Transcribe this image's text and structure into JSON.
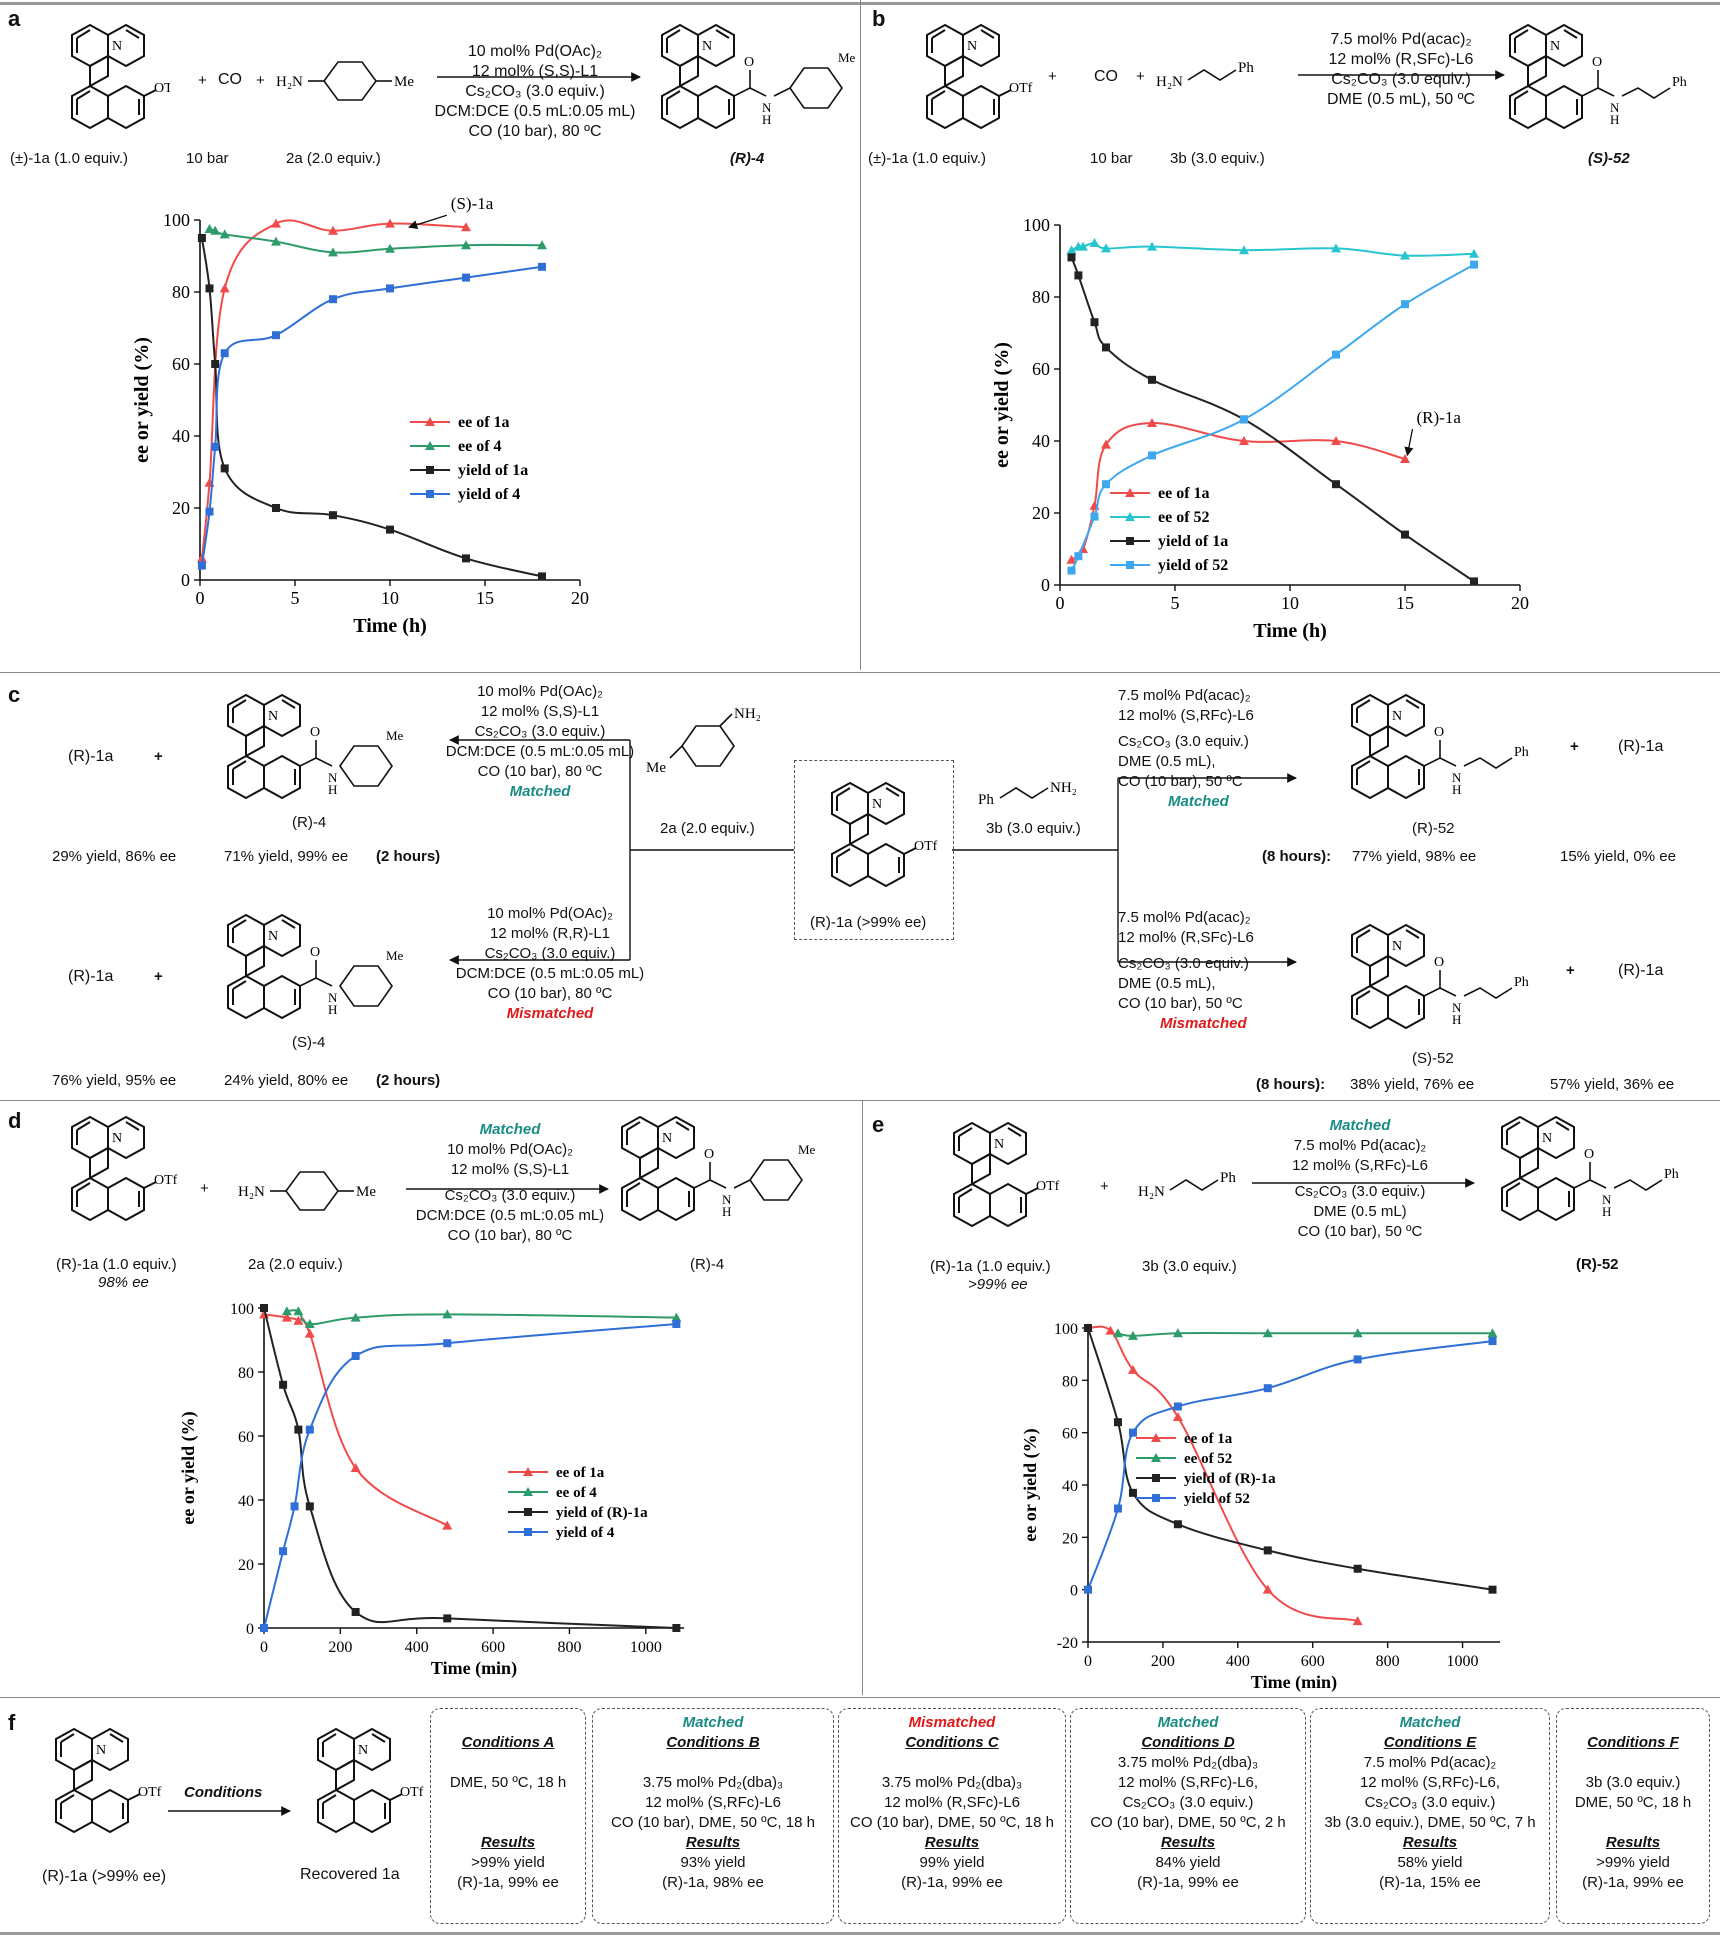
{
  "panels": {
    "a": {
      "letter": "a",
      "reactant": "(±)-1a (1.0  equiv.)",
      "co": "CO",
      "co_pressure": "10 bar",
      "amine": "2a (2.0  equiv.)",
      "conditions": [
        "10 mol% Pd(OAc)₂",
        "12 mol% (S,S)-L1",
        "Cs₂CO₃ (3.0 equiv.)",
        "DCM:DCE (0.5 mL:0.05 mL)",
        "CO (10 bar), 80 ºC"
      ],
      "product": "(R)-4",
      "annotation": "(S)-1a"
    },
    "b": {
      "letter": "b",
      "reactant": "(±)-1a (1.0  equiv.)",
      "co": "CO",
      "co_pressure": "10 bar",
      "amine": "3b (3.0  equiv.)",
      "conditions": [
        "7.5 mol% Pd(acac)₂",
        "12 mol% (R,SFc)-L6",
        "Cs₂CO₃ (3.0 equiv.)",
        "DME (0.5 mL), 50 ºC"
      ],
      "product": "(S)-52",
      "annotation": "(R)-1a"
    },
    "c": {
      "letter": "c",
      "center_label": "(R)-1a (>99% ee)",
      "amine_left": "2a (2.0  equiv.)",
      "amine_right": "3b (3.0  equiv.)",
      "top_left": {
        "conditions": [
          "10 mol% Pd(OAc)₂",
          "12 mol% (S,S)-L1",
          "Cs₂CO₃ (3.0 equiv.)",
          "DCM:DCE (0.5 mL:0.05 mL)",
          "CO (10 bar), 80 ºC"
        ],
        "tag": "Matched",
        "product": "(R)-4",
        "recovered": "(R)-1a",
        "yield_sm": "29% yield, 86% ee",
        "yield_prod": "71% yield, 99% ee",
        "time": "(2 hours)"
      },
      "bottom_left": {
        "conditions": [
          "10 mol% Pd(OAc)₂",
          "12 mol% (R,R)-L1",
          "Cs₂CO₃ (3.0 equiv.)",
          "DCM:DCE (0.5 mL:0.05 mL)",
          "CO (10 bar), 80 ºC"
        ],
        "tag": "Mismatched",
        "product": "(S)-4",
        "recovered": "(R)-1a",
        "yield_sm": "76% yield, 95% ee",
        "yield_prod": "24% yield, 80% ee",
        "time": "(2 hours)"
      },
      "top_right": {
        "conditions": [
          "7.5 mol% Pd(acac)₂",
          "12 mol% (S,RFc)-L6",
          "Cs₂CO₃ (3.0 equiv.)",
          "DME (0.5 mL),",
          "CO (10 bar), 50 ºC"
        ],
        "tag": "Matched",
        "product": "(R)-52",
        "recovered": "(R)-1a",
        "time": "(8 hours):",
        "yield_prod": "77% yield, 98% ee",
        "yield_sm": "15% yield, 0% ee"
      },
      "bottom_right": {
        "conditions": [
          "7.5 mol% Pd(acac)₂",
          "12 mol% (R,SFc)-L6",
          "Cs₂CO₃ (3.0 equiv.)",
          "DME (0.5 mL),",
          "CO (10 bar), 50 ºC"
        ],
        "tag": "Mismatched",
        "product": "(S)-52",
        "recovered": "(R)-1a",
        "time": "(8 hours):",
        "yield_prod": "38% yield, 76% ee",
        "yield_sm": "57% yield, 36% ee"
      }
    },
    "d": {
      "letter": "d",
      "reactant": "(R)-1a (1.0  equiv.)",
      "reactant_ee": "98% ee",
      "amine": "2a (2.0  equiv.)",
      "tag": "Matched",
      "conditions": [
        "10 mol% Pd(OAc)₂",
        "12 mol% (S,S)-L1",
        "Cs₂CO₃ (3.0 equiv.)",
        "DCM:DCE (0.5 mL:0.05 mL)",
        "CO (10 bar), 80 ºC"
      ],
      "product": "(R)-4"
    },
    "e": {
      "letter": "e",
      "reactant": "(R)-1a (1.0  equiv.)",
      "reactant_ee": ">99% ee",
      "amine": "3b (3.0  equiv.)",
      "tag": "Matched",
      "conditions": [
        "7.5 mol% Pd(acac)₂",
        "12 mol% (S,RFc)-L6",
        "Cs₂CO₃ (3.0 equiv.)",
        "DME (0.5 mL)",
        "CO (10 bar), 50 ºC"
      ],
      "product": "(R)-52"
    },
    "f": {
      "letter": "f",
      "reactant": "(R)-1a (>99% ee)",
      "arrow_label": "Conditions",
      "product": "Recovered 1a",
      "boxes": [
        {
          "tag": "",
          "title": "Conditions A",
          "lines": [
            "",
            "DME, 50 ºC, 18 h",
            "",
            ""
          ],
          "results_title": "Results",
          "results": [
            ">99% yield",
            "(R)-1a, 99% ee"
          ]
        },
        {
          "tag": "Matched",
          "tag_color": "teal",
          "title": "Conditions B",
          "lines": [
            "",
            "3.75 mol% Pd₂(dba)₃",
            "12 mol% (S,RFc)-L6",
            "CO (10 bar), DME, 50 ºC, 18 h"
          ],
          "results_title": "Results",
          "results": [
            "93% yield",
            "(R)-1a, 98% ee"
          ]
        },
        {
          "tag": "Mismatched",
          "tag_color": "red",
          "title": "Conditions C",
          "lines": [
            "",
            "3.75 mol% Pd₂(dba)₃",
            "12 mol% (R,SFc)-L6",
            "CO (10 bar), DME, 50 ºC, 18 h"
          ],
          "results_title": "Results",
          "results": [
            "99% yield",
            "(R)-1a, 99% ee"
          ]
        },
        {
          "tag": "Matched",
          "tag_color": "teal",
          "title": "Conditions D",
          "lines": [
            "3.75 mol% Pd₂(dba)₃",
            "12 mol% (S,RFc)-L6,",
            "Cs₂CO₃ (3.0 equiv.)",
            "CO (10 bar), DME, 50 ºC, 2 h"
          ],
          "results_title": "Results",
          "results": [
            "84% yield",
            "(R)-1a, 99% ee"
          ]
        },
        {
          "tag": "Matched",
          "tag_color": "teal",
          "title": "Conditions E",
          "lines": [
            "7.5 mol% Pd(acac)₂",
            "12 mol% (S,RFc)-L6,",
            "Cs₂CO₃ (3.0 equiv.)",
            "3b (3.0 equiv.), DME, 50 ºC, 7 h"
          ],
          "results_title": "Results",
          "results": [
            "58% yield",
            "(R)-1a, 15% ee"
          ]
        },
        {
          "tag": "",
          "title": "Conditions F",
          "lines": [
            "",
            "3b (3.0 equiv.)",
            "DME, 50 ºC, 18 h",
            ""
          ],
          "results_title": "Results",
          "results": [
            ">99% yield",
            "(R)-1a, 99% ee"
          ]
        }
      ]
    }
  },
  "chart_data": [
    {
      "type": "line",
      "panel": "a",
      "xlabel": "Time (h)",
      "ylabel": "ee or yield (%)",
      "xlim": [
        0,
        20
      ],
      "ylim": [
        0,
        100
      ],
      "xticks": [
        0,
        5,
        10,
        15,
        20
      ],
      "yticks": [
        0,
        20,
        40,
        60,
        80,
        100
      ],
      "legend": "bottom-right",
      "series": [
        {
          "name": "ee of 1a",
          "color": "#f04b4b",
          "marker": "triangle",
          "x": [
            0.1,
            0.5,
            1.3,
            4,
            7,
            10,
            14
          ],
          "y": [
            6,
            27,
            81,
            99,
            97,
            99,
            98
          ]
        },
        {
          "name": "ee of 4",
          "color": "#2e9b6a",
          "marker": "triangle",
          "x": [
            0.5,
            0.8,
            1.3,
            4,
            7,
            10,
            14,
            18
          ],
          "y": [
            97.5,
            97,
            96,
            94,
            91,
            92,
            93,
            93
          ]
        },
        {
          "name": "yield of 1a",
          "color": "#222222",
          "marker": "square",
          "x": [
            0.1,
            0.5,
            0.8,
            1.3,
            4,
            7,
            10,
            14,
            18
          ],
          "y": [
            95,
            81,
            60,
            31,
            20,
            18,
            14,
            6,
            1
          ]
        },
        {
          "name": "yield of 4",
          "color": "#2f6fd6",
          "marker": "square",
          "x": [
            0.1,
            0.5,
            0.8,
            1.3,
            4,
            7,
            10,
            14,
            18
          ],
          "y": [
            4,
            19,
            37,
            63,
            68,
            78,
            81,
            84,
            87
          ]
        }
      ]
    },
    {
      "type": "line",
      "panel": "b",
      "xlabel": "Time (h)",
      "ylabel": "ee or yield (%)",
      "xlim": [
        0,
        20
      ],
      "ylim": [
        0,
        100
      ],
      "xticks": [
        0,
        5,
        10,
        15,
        20
      ],
      "yticks": [
        0,
        20,
        40,
        60,
        80,
        100
      ],
      "legend": "bottom-left",
      "series": [
        {
          "name": "ee of 1a",
          "color": "#f04b4b",
          "marker": "triangle",
          "x": [
            0.5,
            1,
            1.5,
            2,
            4,
            8,
            12,
            15
          ],
          "y": [
            7,
            10,
            22,
            39,
            45,
            40,
            40,
            35
          ]
        },
        {
          "name": "ee of 52",
          "color": "#27c6cf",
          "marker": "triangle",
          "x": [
            0.5,
            0.8,
            1,
            1.5,
            2,
            4,
            8,
            12,
            15,
            18
          ],
          "y": [
            93,
            94,
            94,
            95,
            93.5,
            94,
            93,
            93.5,
            91.5,
            92
          ]
        },
        {
          "name": "yield of 1a",
          "color": "#222222",
          "marker": "square",
          "x": [
            0.5,
            0.8,
            1.5,
            2,
            4,
            8,
            12,
            15,
            18
          ],
          "y": [
            91,
            86,
            73,
            66,
            57,
            46,
            28,
            14,
            1
          ]
        },
        {
          "name": "yield of 52",
          "color": "#3ea8ef",
          "marker": "square",
          "x": [
            0.5,
            0.8,
            1.5,
            2,
            4,
            8,
            12,
            15,
            18
          ],
          "y": [
            4,
            8,
            19,
            28,
            36,
            46,
            64,
            78,
            89
          ]
        }
      ]
    },
    {
      "type": "line",
      "panel": "d",
      "xlabel": "Time (min)",
      "ylabel": "ee or yield (%)",
      "xlim": [
        0,
        1100
      ],
      "ylim": [
        0,
        100
      ],
      "xticks": [
        0,
        200,
        400,
        600,
        800,
        1000
      ],
      "yticks": [
        0,
        20,
        40,
        60,
        80,
        100
      ],
      "legend": "bottom-right",
      "series": [
        {
          "name": "ee of 1a",
          "color": "#f04b4b",
          "marker": "triangle",
          "x": [
            0,
            60,
            90,
            120,
            240,
            480
          ],
          "y": [
            98,
            97,
            96,
            92,
            50,
            32
          ]
        },
        {
          "name": "ee of 4",
          "color": "#2e9b6a",
          "marker": "triangle",
          "x": [
            60,
            90,
            120,
            240,
            480,
            1080
          ],
          "y": [
            99,
            99,
            95,
            97,
            98,
            97
          ]
        },
        {
          "name": "yield of (R)-1a",
          "color": "#222222",
          "marker": "square",
          "x": [
            0,
            50,
            90,
            120,
            240,
            480,
            1080
          ],
          "y": [
            100,
            76,
            62,
            38,
            5,
            3,
            0
          ]
        },
        {
          "name": "yield of 4",
          "color": "#2f6fd6",
          "marker": "square",
          "x": [
            0,
            50,
            80,
            120,
            240,
            480,
            1080
          ],
          "y": [
            0,
            24,
            38,
            62,
            85,
            89,
            95
          ]
        }
      ]
    },
    {
      "type": "line",
      "panel": "e",
      "xlabel": "Time (min)",
      "ylabel": "ee or yield (%)",
      "xlim": [
        0,
        1100
      ],
      "ylim": [
        -20,
        100
      ],
      "xticks": [
        0,
        200,
        400,
        600,
        800,
        1000
      ],
      "yticks": [
        -20,
        0,
        20,
        40,
        60,
        80,
        100
      ],
      "legend": "middle-left",
      "series": [
        {
          "name": "ee of 1a",
          "color": "#f04b4b",
          "marker": "triangle",
          "x": [
            0,
            60,
            120,
            240,
            480,
            720
          ],
          "y": [
            100,
            99,
            84,
            66,
            0,
            -12
          ]
        },
        {
          "name": "ee of 52",
          "color": "#2e9b6a",
          "marker": "triangle",
          "x": [
            80,
            120,
            240,
            480,
            720,
            1080
          ],
          "y": [
            98,
            97,
            98,
            98,
            98,
            98
          ]
        },
        {
          "name": "yield of (R)-1a",
          "color": "#222222",
          "marker": "square",
          "x": [
            0,
            80,
            120,
            240,
            480,
            720,
            1080
          ],
          "y": [
            100,
            64,
            37,
            25,
            15,
            8,
            0
          ]
        },
        {
          "name": "yield of 52",
          "color": "#2f6fd6",
          "marker": "square",
          "x": [
            0,
            80,
            120,
            240,
            480,
            720,
            1080
          ],
          "y": [
            0,
            31,
            60,
            70,
            77,
            88,
            95
          ]
        }
      ]
    }
  ]
}
